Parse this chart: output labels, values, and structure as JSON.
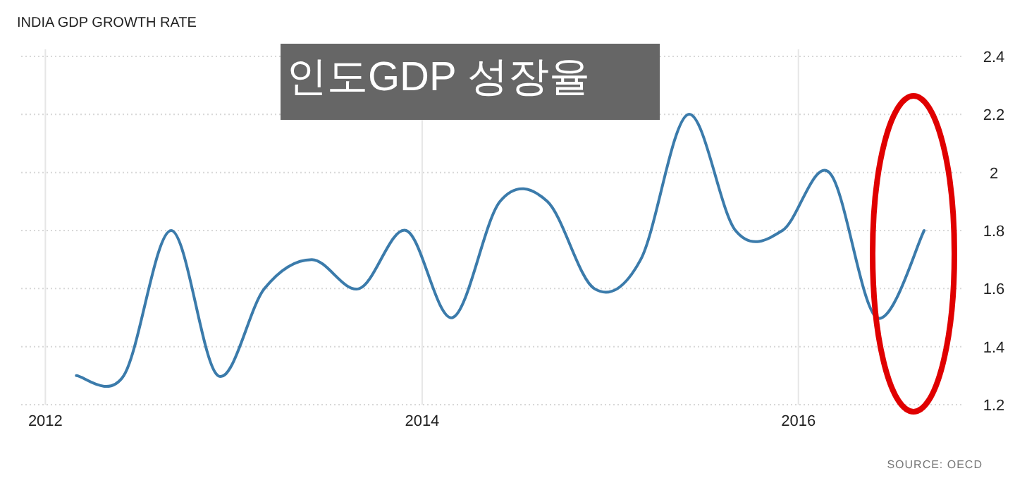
{
  "chart_data": {
    "type": "line",
    "title": "INDIA GDP GROWTH RATE",
    "subtitle": "인도GDP 성장율",
    "annotations": [
      "SOURCE: OECD"
    ],
    "x": [
      "2012-03",
      "2012-06",
      "2012-09",
      "2012-12",
      "2013-03",
      "2013-06",
      "2013-09",
      "2013-12",
      "2014-03",
      "2014-06",
      "2014-09",
      "2014-12",
      "2015-03",
      "2015-06",
      "2015-09",
      "2015-12",
      "2016-03",
      "2016-06",
      "2016-09"
    ],
    "series": [
      {
        "color": "#3b7bab",
        "values": [
          1.3,
          1.3,
          1.8,
          1.3,
          1.6,
          1.7,
          1.6,
          1.8,
          1.5,
          1.9,
          1.9,
          1.6,
          1.7,
          2.2,
          1.8,
          1.8,
          2.0,
          1.5,
          1.8
        ]
      }
    ],
    "xlim": [
      "2011-11-15",
      "2016-11-15"
    ],
    "xticks": [
      "2012",
      "2014",
      "2016"
    ],
    "ylim": [
      1.2,
      2.4
    ],
    "yticks": [
      1.2,
      1.4,
      1.6,
      1.8,
      2,
      2.2,
      2.4
    ],
    "grid": true,
    "marker": "none",
    "line_style": "solid"
  }
}
